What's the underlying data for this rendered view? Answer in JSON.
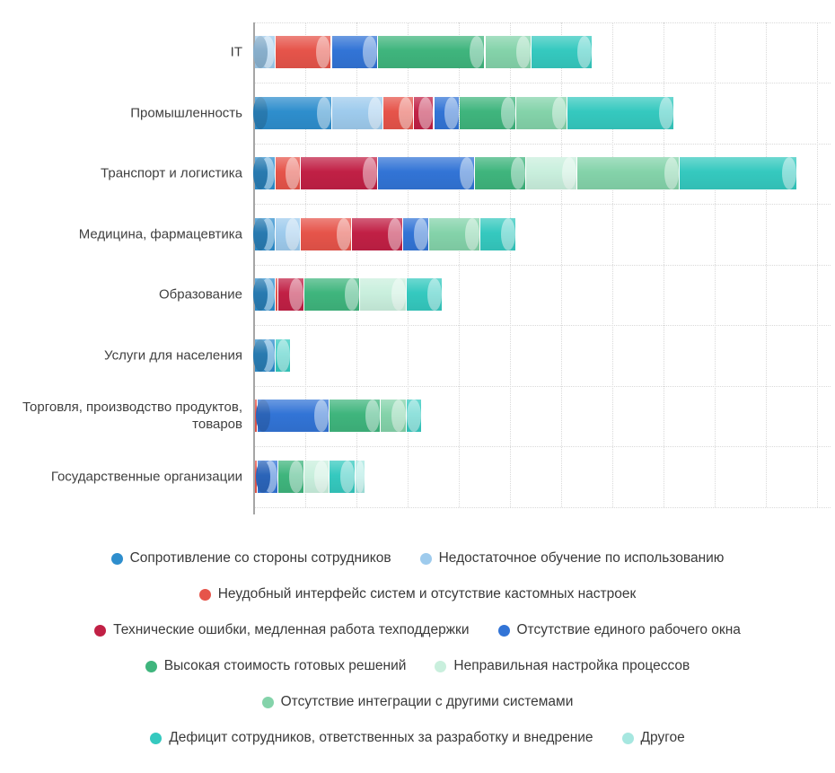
{
  "chart_data": {
    "type": "bar",
    "orientation": "horizontal-stacked",
    "title": "",
    "xlabel": "",
    "ylabel": "",
    "unit": "percent (estimated, gridline = 5)",
    "grid": "dotted vertical and horizontal gridlines, no axis tick labels",
    "legend_position": "bottom-centered, multi-row",
    "axis_color": "#a6a6a6",
    "grid_color": "#d9d9d9",
    "series": [
      {
        "name": "Сопротивление со стороны сотрудников",
        "color": "#2e8ecd"
      },
      {
        "name": "Недостаточное обучение по использованию",
        "color": "#9ecbed"
      },
      {
        "name": "Неудобный интерфейс систем и отсутствие кастомных настроек",
        "color": "#e6544a"
      },
      {
        "name": "Технические ошибки, медленная работа техподдержки",
        "color": "#c12045"
      },
      {
        "name": "Отсутствие единого рабочего окна",
        "color": "#3274d6"
      },
      {
        "name": "Высокая стоимость готовых решений",
        "color": "#3fb57d"
      },
      {
        "name": "Неправильная настройка процессов",
        "color": "#c9efdd"
      },
      {
        "name": "Отсутствие интеграции с другими системами",
        "color": "#84d3aa"
      },
      {
        "name": "Дефицит сотрудников, ответственных за разработку и внедрение",
        "color": "#35c9bf"
      },
      {
        "name": "Другое",
        "color": "#a6e7e0"
      }
    ],
    "categories": [
      "IT",
      "Промышленность",
      "Транспорт и логистика",
      "Медицина, фармацевтика",
      "Образование",
      "Услуги для населения",
      "Торговля, производство продуктов, товаров",
      "Государственные организации"
    ],
    "rows": [
      {
        "label": "IT",
        "values": [
          0,
          2,
          5.5,
          0,
          4.5,
          10.5,
          0,
          4.5,
          6,
          0
        ]
      },
      {
        "label": "Промышленность",
        "values": [
          7.5,
          5,
          3,
          2,
          2.5,
          5.5,
          0,
          5,
          10.5,
          0
        ]
      },
      {
        "label": "Транспорт и логистика",
        "values": [
          2,
          0,
          2.5,
          7.5,
          9.5,
          5,
          5,
          10,
          11.5,
          0
        ]
      },
      {
        "label": "Медицина, фармацевтика",
        "values": [
          2,
          2.5,
          5,
          5,
          2.5,
          0,
          0,
          5,
          3.5,
          0
        ]
      },
      {
        "label": "Образование",
        "values": [
          2,
          0,
          0.3,
          2.5,
          0,
          5.5,
          4.5,
          0,
          3.5,
          0
        ]
      },
      {
        "label": "Услуги для населения",
        "values": [
          2,
          0,
          0,
          0,
          0,
          0,
          0,
          0,
          1.5,
          0
        ]
      },
      {
        "label": "Торговля, производство продуктов, товаров",
        "values": [
          0,
          0,
          0.3,
          0,
          7,
          5,
          0,
          2.5,
          1.5,
          0
        ]
      },
      {
        "label": "Государственные организации",
        "values": [
          0,
          0,
          0.3,
          0,
          2,
          2.5,
          2.5,
          0,
          2.5,
          1
        ]
      }
    ],
    "legend_rows": [
      [
        0,
        1
      ],
      [
        2
      ],
      [
        3,
        4
      ],
      [
        5,
        6
      ],
      [
        7
      ],
      [
        8,
        9
      ]
    ]
  }
}
